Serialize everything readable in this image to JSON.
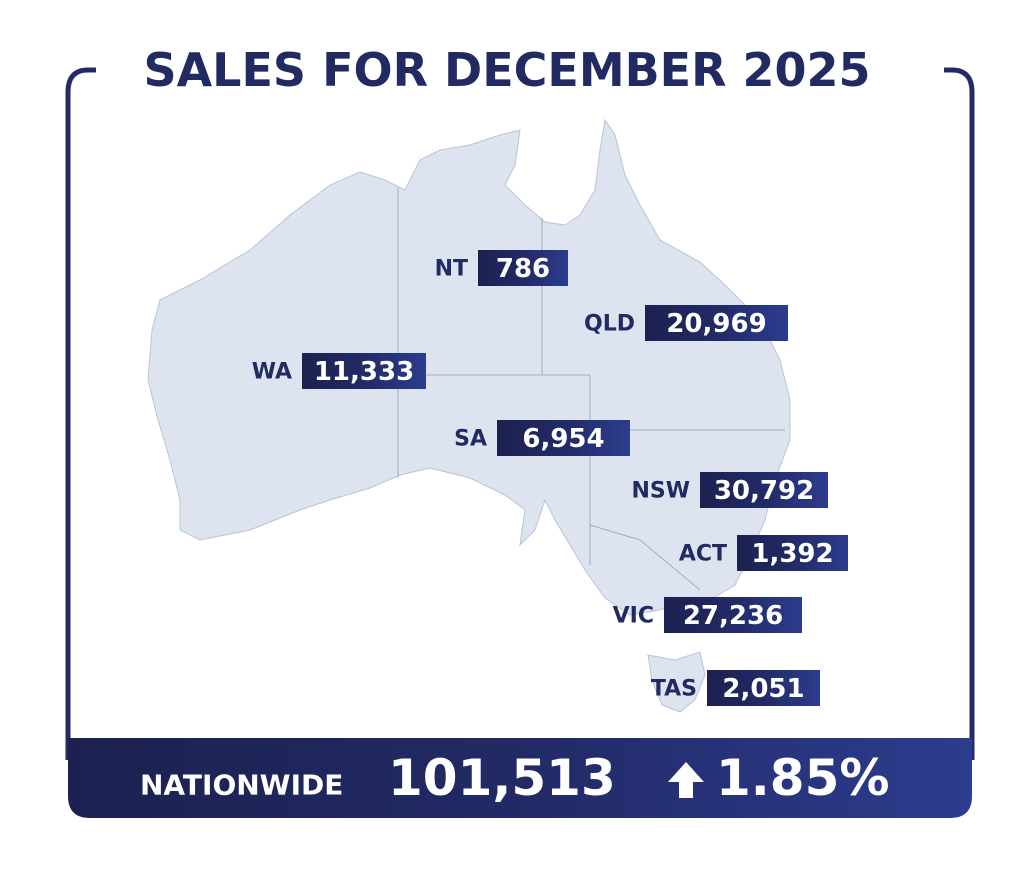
{
  "title": "SALES FOR DECEMBER 2025",
  "regions": [
    {
      "name": "NT",
      "value": "786"
    },
    {
      "name": "QLD",
      "value": "20,969"
    },
    {
      "name": "WA",
      "value": "11,333"
    },
    {
      "name": "SA",
      "value": "6,954"
    },
    {
      "name": "NSW",
      "value": "30,792"
    },
    {
      "name": "ACT",
      "value": "1,392"
    },
    {
      "name": "VIC",
      "value": "27,236"
    },
    {
      "name": "TAS",
      "value": "2,051"
    }
  ],
  "footer": {
    "label": "NATIONWIDE",
    "total": "101,513",
    "change": "1.85%"
  }
}
